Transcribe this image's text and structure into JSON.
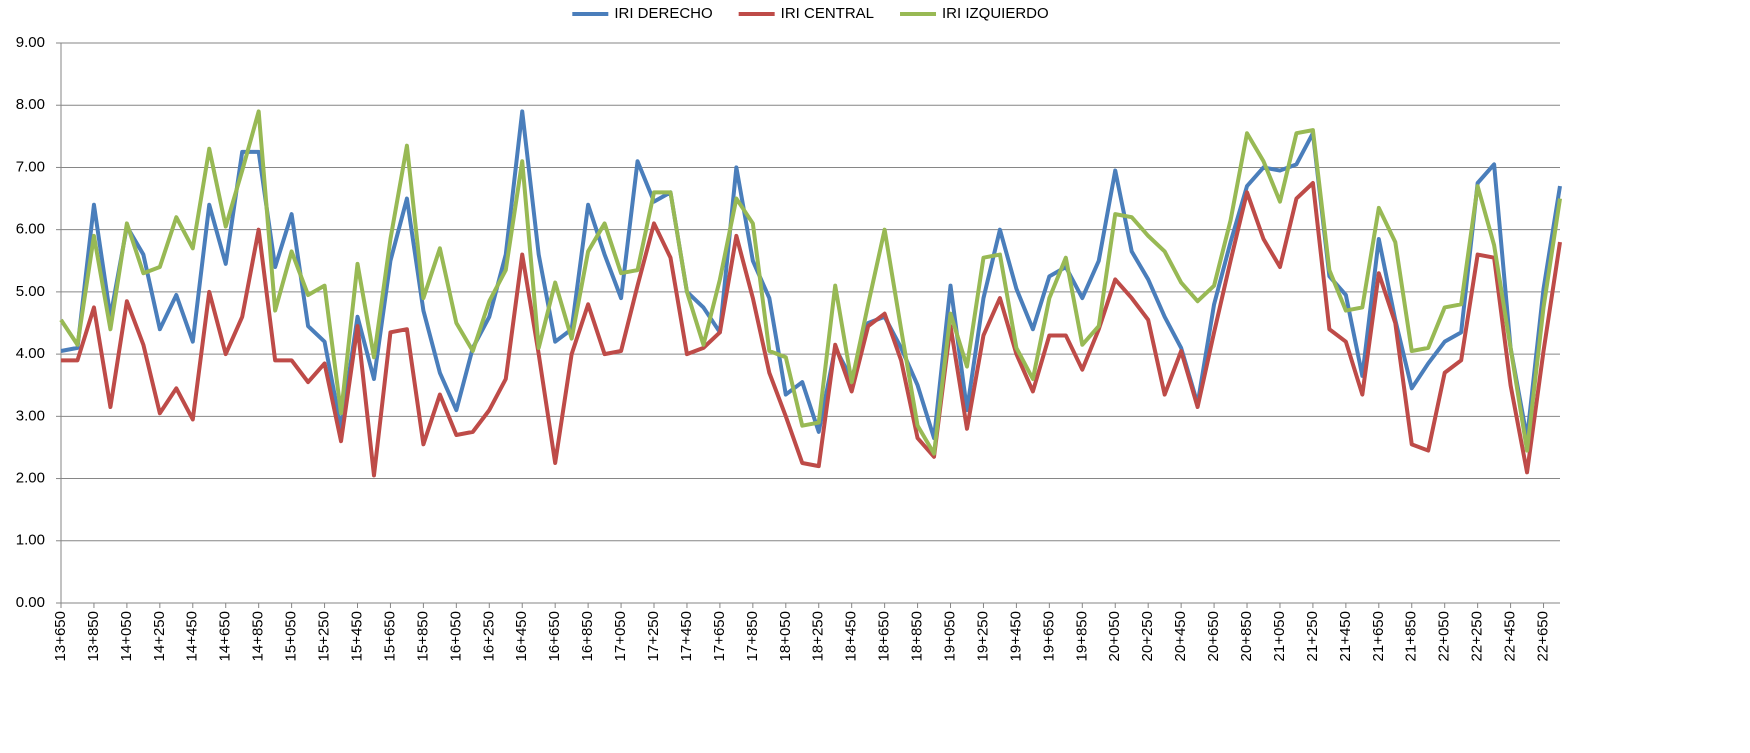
{
  "chart_data": {
    "type": "line",
    "categories": [
      "13+650",
      null,
      "13+850",
      null,
      "14+050",
      null,
      "14+250",
      null,
      "14+450",
      null,
      "14+650",
      null,
      "14+850",
      null,
      "15+050",
      null,
      "15+250",
      null,
      "15+450",
      null,
      "15+650",
      null,
      "15+850",
      null,
      "16+050",
      null,
      "16+250",
      null,
      "16+450",
      null,
      "16+650",
      null,
      "16+850",
      null,
      "17+050",
      null,
      "17+250",
      null,
      "17+450",
      null,
      "17+650",
      null,
      "17+850",
      null,
      "18+050",
      null,
      "18+250",
      null,
      "18+450",
      null,
      "18+650",
      null,
      "18+850",
      null,
      "19+050",
      null,
      "19+250",
      null,
      "19+450",
      null,
      "19+650",
      null,
      "19+850",
      null,
      "20+050",
      null,
      "20+250",
      null,
      "20+450",
      null,
      "20+650",
      null,
      "20+850",
      null,
      "21+050",
      null,
      "21+250",
      null,
      "21+450",
      null,
      "21+650",
      null,
      "21+850",
      null,
      "22+050",
      null,
      "22+250",
      null,
      "22+450",
      null,
      "22+650",
      null
    ],
    "series": [
      {
        "name": "IRI DERECHO",
        "color": "#4a7ebb",
        "values": [
          4.05,
          4.1,
          6.4,
          4.6,
          6.05,
          5.6,
          4.4,
          4.95,
          4.2,
          6.4,
          5.45,
          7.25,
          7.25,
          5.4,
          6.25,
          4.45,
          4.2,
          2.8,
          4.6,
          3.6,
          5.5,
          6.5,
          4.7,
          3.7,
          3.1,
          4.1,
          4.6,
          5.6,
          7.9,
          5.6,
          4.2,
          4.4,
          6.4,
          5.6,
          4.9,
          7.1,
          6.45,
          6.6,
          5.0,
          4.75,
          4.35,
          7.0,
          5.5,
          4.9,
          3.35,
          3.55,
          2.75,
          4.1,
          3.6,
          4.5,
          4.6,
          4.1,
          3.5,
          2.65,
          5.1,
          3.1,
          4.9,
          6.0,
          5.05,
          4.4,
          5.25,
          5.4,
          4.9,
          5.5,
          6.95,
          5.65,
          5.2,
          4.6,
          4.1,
          3.2,
          4.8,
          5.8,
          6.7,
          7.0,
          6.95,
          7.05,
          7.55,
          5.25,
          4.95,
          3.65,
          5.85,
          4.55,
          3.45,
          3.85,
          4.2,
          4.35,
          6.75,
          7.05,
          4.1,
          2.65,
          5.05,
          6.7
        ]
      },
      {
        "name": "IRI CENTRAL",
        "color": "#be4b48",
        "values": [
          3.9,
          3.9,
          4.75,
          3.15,
          4.85,
          4.15,
          3.05,
          3.45,
          2.95,
          5.0,
          4.0,
          4.6,
          6.0,
          3.9,
          3.9,
          3.55,
          3.85,
          2.6,
          4.45,
          2.05,
          4.35,
          4.4,
          2.55,
          3.35,
          2.7,
          2.75,
          3.1,
          3.6,
          5.6,
          4.0,
          2.25,
          4.0,
          4.8,
          4.0,
          4.05,
          5.1,
          6.1,
          5.55,
          4.0,
          4.1,
          4.35,
          5.9,
          4.9,
          3.7,
          3.0,
          2.25,
          2.2,
          4.15,
          3.4,
          4.45,
          4.65,
          3.9,
          2.65,
          2.35,
          4.45,
          2.8,
          4.3,
          4.9,
          4.0,
          3.4,
          4.3,
          4.3,
          3.75,
          4.4,
          5.2,
          4.9,
          4.55,
          3.35,
          4.05,
          3.15,
          4.35,
          5.5,
          6.6,
          5.85,
          5.4,
          6.5,
          6.75,
          4.4,
          4.2,
          3.35,
          5.3,
          4.5,
          2.55,
          2.45,
          3.7,
          3.9,
          5.6,
          5.55,
          3.5,
          2.1,
          4.05,
          5.8
        ]
      },
      {
        "name": "IRI IZQUIERDO",
        "color": "#98b954",
        "values": [
          4.55,
          4.15,
          5.9,
          4.4,
          6.1,
          5.3,
          5.4,
          6.2,
          5.7,
          7.3,
          6.05,
          6.95,
          7.9,
          4.7,
          5.65,
          4.95,
          5.1,
          3.05,
          5.45,
          3.95,
          5.85,
          7.35,
          4.9,
          5.7,
          4.5,
          4.05,
          4.85,
          5.35,
          7.1,
          4.1,
          5.15,
          4.25,
          5.65,
          6.1,
          5.3,
          5.35,
          6.6,
          6.6,
          5.0,
          4.15,
          5.2,
          6.5,
          6.1,
          4.05,
          3.95,
          2.85,
          2.9,
          5.1,
          3.55,
          4.8,
          6.0,
          4.4,
          2.85,
          2.4,
          4.65,
          3.8,
          5.55,
          5.6,
          4.1,
          3.6,
          4.9,
          5.55,
          4.15,
          4.45,
          6.25,
          6.2,
          5.9,
          5.65,
          5.15,
          4.85,
          5.1,
          6.15,
          7.55,
          7.1,
          6.45,
          7.55,
          7.6,
          5.35,
          4.7,
          4.75,
          6.35,
          5.8,
          4.05,
          4.1,
          4.75,
          4.8,
          6.7,
          5.75,
          4.1,
          2.45,
          4.75,
          6.5
        ]
      }
    ],
    "ylim": [
      0,
      9
    ],
    "yticks": [
      {
        "value": 0,
        "label": "0.00"
      },
      {
        "value": 1,
        "label": "1.00"
      },
      {
        "value": 2,
        "label": "2.00"
      },
      {
        "value": 3,
        "label": "3.00"
      },
      {
        "value": 4,
        "label": "4.00"
      },
      {
        "value": 5,
        "label": "5.00"
      },
      {
        "value": 6,
        "label": "6.00"
      },
      {
        "value": 7,
        "label": "7.00"
      },
      {
        "value": 8,
        "label": "8.00"
      },
      {
        "value": 9,
        "label": "9.00"
      }
    ],
    "grid": true,
    "legend": "top"
  }
}
